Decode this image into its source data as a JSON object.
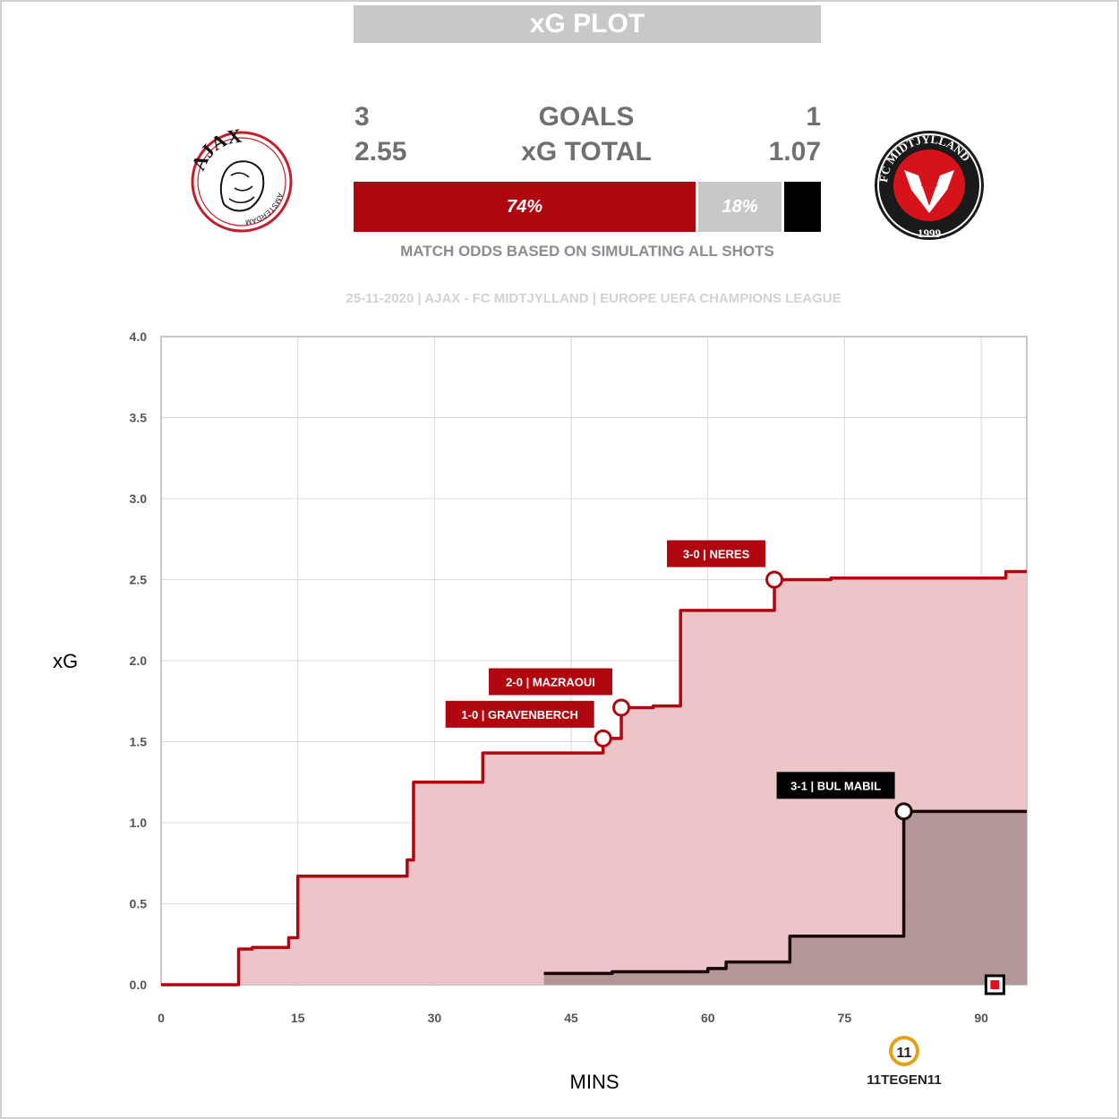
{
  "header": {
    "title": "xG PLOT"
  },
  "teams": {
    "home": {
      "name": "AJAX",
      "logo_text": "AJAX",
      "logo_sub": "AMSTERDAM",
      "color": "#b0060f"
    },
    "away": {
      "name": "FC MIDTJYLLAND",
      "logo_text": "FC MIDTJYLLAND",
      "logo_year": "1999",
      "color": "#000000"
    }
  },
  "summary": {
    "goals_label": "GOALS",
    "xg_label": "xG TOTAL",
    "home_goals": "3",
    "away_goals": "1",
    "home_xg": "2.55",
    "away_xg": "1.07"
  },
  "odds": {
    "home_win": 74,
    "draw": 18,
    "away_win": 8,
    "home_label": "74%",
    "draw_label": "18%",
    "away_label": "",
    "note": "MATCH ODDS BASED ON SIMULATING ALL SHOTS"
  },
  "match_info": "25-11-2020 | AJAX - FC MIDTJYLLAND | EUROPE UEFA CHAMPIONS LEAGUE",
  "branding": {
    "logo_mark": "11",
    "logo_text": "11TEGEN11"
  },
  "chart_data": {
    "type": "line",
    "xlabel": "MINS",
    "ylabel": "xG",
    "xlim": [
      0,
      95
    ],
    "ylim": [
      0,
      4
    ],
    "xticks": [
      0,
      15,
      30,
      45,
      60,
      75,
      90
    ],
    "xtick_labels": [
      "0",
      "15",
      "30",
      "45",
      "60",
      "75",
      "90"
    ],
    "yticks": [
      0,
      0.5,
      1,
      1.5,
      2,
      2.5,
      3,
      3.5,
      4
    ],
    "ytick_labels": [
      "0.0",
      "0.5",
      "1.0",
      "1.5",
      "2.0",
      "2.5",
      "3.0",
      "3.5",
      "4.0"
    ],
    "grid": true,
    "series": [
      {
        "team": "home",
        "color": "#b0060f",
        "fill": "#ebc0c3",
        "steps": [
          [
            0,
            0
          ],
          [
            8.5,
            0.22
          ],
          [
            10,
            0.23
          ],
          [
            14,
            0.29
          ],
          [
            15,
            0.67
          ],
          [
            27,
            0.77
          ],
          [
            27.7,
            1.25
          ],
          [
            35.3,
            1.43
          ],
          [
            48.5,
            1.52
          ],
          [
            50.5,
            1.71
          ],
          [
            54,
            1.72
          ],
          [
            57,
            2.31
          ],
          [
            67.3,
            2.5
          ],
          [
            73.5,
            2.51
          ],
          [
            92.7,
            2.55
          ],
          [
            95,
            2.55
          ]
        ]
      },
      {
        "team": "away",
        "color": "#1a0505",
        "fill": "#ae9194",
        "steps": [
          [
            42,
            0.07
          ],
          [
            49.5,
            0.08
          ],
          [
            60,
            0.1
          ],
          [
            62,
            0.14
          ],
          [
            69,
            0.3
          ],
          [
            81.5,
            1.07
          ],
          [
            95,
            1.07
          ]
        ]
      }
    ],
    "goals": [
      {
        "team": "home",
        "label": "1-0 | GRAVENBERCH",
        "x": 48.5,
        "y": 1.52
      },
      {
        "team": "home",
        "label": "2-0 | MAZRAOUI",
        "x": 50.5,
        "y": 1.71
      },
      {
        "team": "home",
        "label": "3-0 | NERES",
        "x": 67.3,
        "y": 2.5
      },
      {
        "team": "away",
        "label": "3-1 | BUL MABIL",
        "x": 81.5,
        "y": 1.07
      }
    ],
    "markers": [
      {
        "type": "red-card",
        "team": "home",
        "x": 91.5,
        "y": 0
      }
    ]
  }
}
